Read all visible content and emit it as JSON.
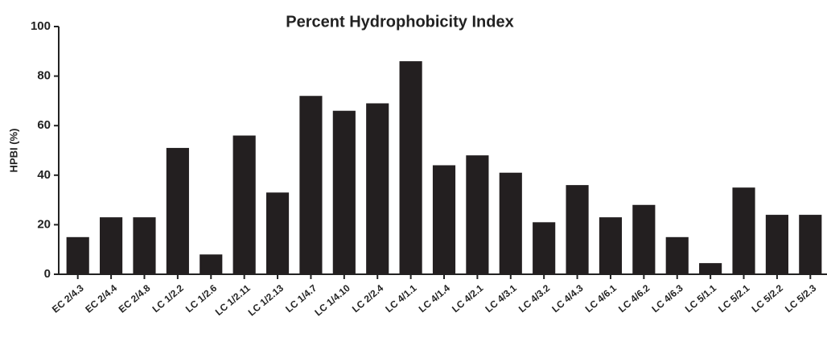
{
  "chart_data": {
    "type": "bar",
    "title": "Percent Hydrophobicity Index",
    "y_label": "HPBI (%)",
    "categories": [
      "EC 2/4.3",
      "EC 2/4.4",
      "EC 2/4.8",
      "LC 1/2.2",
      "LC 1/2.6",
      "LC 1/2.11",
      "LC 1/2.13",
      "LC 1/4.7",
      "LC 1/4.10",
      "LC 2/2.4",
      "LC 4/1.1",
      "LC 4/1.4",
      "LC 4/2.1",
      "LC 4/3.1",
      "LC 4/3.2",
      "LC 4/4.3",
      "LC 4/6.1",
      "LC 4/6.2",
      "LC 4/6.3",
      "LC 5/1.1",
      "LC 5/2.1",
      "LC 5/2.2",
      "LC 5/2.3"
    ],
    "values": [
      15,
      23,
      23,
      51,
      8,
      56,
      33,
      72,
      66,
      69,
      86,
      44,
      48,
      41,
      21,
      36,
      23,
      28,
      15,
      4.5,
      35,
      24,
      24
    ],
    "color": "#231f20",
    "ylim": [
      0,
      100
    ],
    "yticks": [
      0,
      20,
      40,
      60,
      80,
      100
    ],
    "grid": false
  }
}
